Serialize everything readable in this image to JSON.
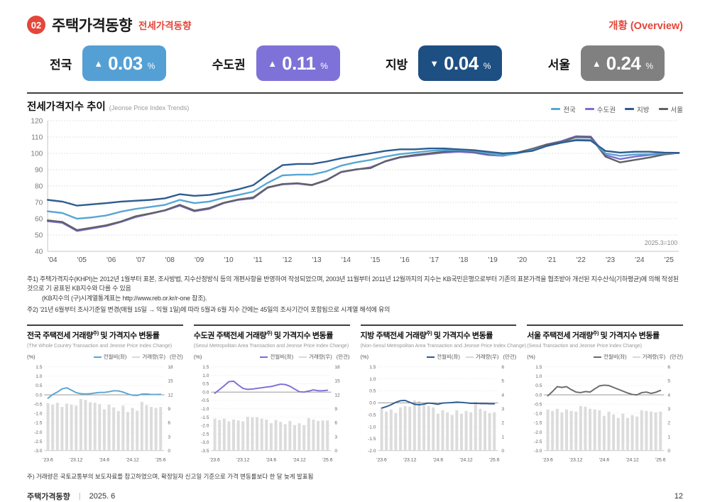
{
  "page": {
    "badge_number": "02",
    "title": "주택가격동향",
    "subtitle": "전세가격동향",
    "overview_label": "개황 (Overview)",
    "footnote1": "주1) 주택가격지수(KHPI)는 2012년 1월부터 표본, 조사방법, 지수산정방식 등의 개편사항을 반영하여 작성되었으며, 2003년 11월부터 2011년 12월까지의 지수는 KB국민은행으로부터 기존의 표본가격을 협조받아 개선된 지수산식(기하평균)에 의해 작성된 것으로 기 공표된 KB지수와 다를 수 있음",
    "footnote1b": "(KB지수의 (구)시계열통계표는 http://www.reb.or.kr/r-one 참조).",
    "footnote2": "주2) '21년 6월부터 조사기준일 변경(매월 15일 → 익월 1일)에 따라 5월과 6월 지수 간에는 45일의 조사기간이 포함됨으로 시계열 해석에 유의",
    "bottom_note": "주) 거래량은 국토교통부의 보도자료를 참고하였으며, 확정일자 신고일 기준으로 가격 변동률보다 한 달 늦게 발표됨",
    "footer_left": "주택가격동향",
    "footer_divider": "|",
    "footer_date": "2025. 6",
    "page_number": "12"
  },
  "summary_badges": [
    {
      "region": "전국",
      "direction": "▲",
      "value": "0.03",
      "unit": "%",
      "color": "#54a0d4"
    },
    {
      "region": "수도권",
      "direction": "▲",
      "value": "0.11",
      "unit": "%",
      "color": "#7e72d8"
    },
    {
      "region": "지방",
      "direction": "▼",
      "value": "0.04",
      "unit": "%",
      "color": "#1e4f82"
    },
    {
      "region": "서울",
      "direction": "▲",
      "value": "0.24",
      "unit": "%",
      "color": "#808080"
    }
  ],
  "index_chart": {
    "title": "전세가격지수 추이",
    "subtitle": "(Jeonse Price Index Trends)",
    "legend": [
      {
        "label": "전국",
        "color": "#58a6d4"
      },
      {
        "label": "수도권",
        "color": "#7b6fd5"
      },
      {
        "label": "지방",
        "color": "#2d5c8f"
      },
      {
        "label": "서울",
        "color": "#606066"
      }
    ]
  },
  "panels": [
    {
      "title_main": "전국 주택전세 거래량",
      "title_sup": "주)",
      "title_tail": " 및 가격지수 변동률",
      "subtitle": "(The Whole Country Transaction and Jeonse Price Index Change)",
      "unit_left": "(%)",
      "unit_right": "(만건)",
      "legend_line": "전월비(좌)",
      "legend_bar": "거래량(우)",
      "line_color": "#58a6d4",
      "bar_color": "#d9d9d9"
    },
    {
      "title_main": "수도권 주택전세 거래량",
      "title_sup": "주)",
      "title_tail": " 및 가격지수 변동률",
      "subtitle": "(Seoul Metropolitan Area Transaction and Jeonse Price Index Change)",
      "unit_left": "(%)",
      "unit_right": "(만건)",
      "legend_line": "전월비(좌)",
      "legend_bar": "거래량(우)",
      "line_color": "#7b6fd5",
      "bar_color": "#d9d9d9"
    },
    {
      "title_main": "지방 주택전세 거래량",
      "title_sup": "주)",
      "title_tail": " 및 가격지수 변동률",
      "subtitle": "(Non-Seoul Metropolitan Area Transaction and Jeonse Price Index Change)",
      "unit_left": "(%)",
      "unit_right": "(만건)",
      "legend_line": "전월비(좌)",
      "legend_bar": "거래량(우)",
      "line_color": "#2d5c8f",
      "bar_color": "#d9d9d9"
    },
    {
      "title_main": "서울 주택전세 거래량",
      "title_sup": "주)",
      "title_tail": " 및 가격지수 변동률",
      "subtitle": "(Seoul Transaction and Jeonse Price Index Change)",
      "unit_left": "(%)",
      "unit_right": "(만건)",
      "legend_line": "전월비(좌)",
      "legend_bar": "거래량(우)",
      "line_color": "#6b6b6e",
      "bar_color": "#d9d9d9"
    }
  ],
  "chart_data": [
    {
      "type": "line",
      "title": "전세가격지수 추이 (Jeonse Price Index Trends)",
      "note": "2025.3=100",
      "ylim": [
        40,
        120
      ],
      "yticks": [
        40,
        50,
        60,
        70,
        80,
        90,
        100,
        110,
        120
      ],
      "grid": "dotted-horizontal",
      "legend_position": "top-right",
      "x": [
        2004.0,
        2004.5,
        2005.0,
        2005.5,
        2006.0,
        2006.5,
        2007.0,
        2007.5,
        2008.0,
        2008.5,
        2009.0,
        2009.5,
        2010.0,
        2010.5,
        2011.0,
        2011.5,
        2012.0,
        2012.5,
        2013.0,
        2013.5,
        2014.0,
        2014.5,
        2015.0,
        2015.5,
        2016.0,
        2016.5,
        2017.0,
        2017.5,
        2018.0,
        2018.5,
        2019.0,
        2019.5,
        2020.0,
        2020.5,
        2021.0,
        2021.5,
        2022.0,
        2022.5,
        2023.0,
        2023.5,
        2024.0,
        2024.5,
        2025.0,
        2025.5
      ],
      "xticks": [
        {
          "year": 2004,
          "label": "'04"
        },
        {
          "year": 2005,
          "label": "'05"
        },
        {
          "year": 2006,
          "label": "'06"
        },
        {
          "year": 2007,
          "label": "'07"
        },
        {
          "year": 2008,
          "label": "'08"
        },
        {
          "year": 2009,
          "label": "'09"
        },
        {
          "year": 2010,
          "label": "'10"
        },
        {
          "year": 2011,
          "label": "'11"
        },
        {
          "year": 2012,
          "label": "'12"
        },
        {
          "year": 2013,
          "label": "'13"
        },
        {
          "year": 2014,
          "label": "'14"
        },
        {
          "year": 2015,
          "label": "'15"
        },
        {
          "year": 2016,
          "label": "'16"
        },
        {
          "year": 2017,
          "label": "'17"
        },
        {
          "year": 2018,
          "label": "'18"
        },
        {
          "year": 2019,
          "label": "'19"
        },
        {
          "year": 2020,
          "label": "'20"
        },
        {
          "year": 2021,
          "label": "'21"
        },
        {
          "year": 2022,
          "label": "'22"
        },
        {
          "year": 2023,
          "label": "'23"
        },
        {
          "year": 2024,
          "label": "'24"
        },
        {
          "year": 2025,
          "label": "'25"
        }
      ],
      "series": [
        {
          "name": "수도권",
          "color": "#7b6fd5",
          "values": [
            58.5,
            57.5,
            52.5,
            54.0,
            55.5,
            58.0,
            61.0,
            63.0,
            65.0,
            68.0,
            64.5,
            66.0,
            69.5,
            71.5,
            72.5,
            79.0,
            81.0,
            81.5,
            80.5,
            83.5,
            88.5,
            90.0,
            91.5,
            95.0,
            97.5,
            98.5,
            99.5,
            100.5,
            101.0,
            100.5,
            99.0,
            98.5,
            100.0,
            102.5,
            105.5,
            107.5,
            110.5,
            110.3,
            99.0,
            96.5,
            98.0,
            99.0,
            100.0,
            100.3
          ]
        },
        {
          "name": "서울",
          "color": "#606066",
          "values": [
            59.0,
            58.0,
            53.0,
            54.5,
            56.0,
            58.3,
            61.5,
            63.2,
            65.2,
            68.5,
            65.0,
            66.5,
            69.8,
            71.8,
            73.0,
            79.2,
            81.2,
            81.7,
            80.7,
            83.7,
            88.7,
            90.2,
            91.0,
            95.2,
            97.7,
            99.0,
            100.0,
            101.0,
            101.5,
            101.0,
            99.5,
            99.0,
            100.5,
            102.8,
            105.5,
            107.0,
            110.0,
            109.8,
            98.0,
            94.5,
            96.0,
            97.5,
            99.3,
            100.3
          ]
        },
        {
          "name": "전국",
          "color": "#58a6d4",
          "values": [
            64.5,
            63.5,
            60.0,
            60.8,
            62.0,
            64.3,
            66.0,
            67.2,
            68.5,
            71.5,
            69.5,
            70.5,
            72.8,
            74.5,
            76.5,
            82.0,
            86.5,
            87.0,
            87.0,
            89.0,
            92.5,
            94.5,
            96.0,
            98.0,
            99.5,
            100.5,
            101.5,
            102.0,
            102.0,
            101.5,
            100.0,
            98.8,
            100.0,
            102.0,
            104.5,
            106.5,
            108.5,
            108.3,
            100.0,
            98.5,
            99.3,
            99.5,
            100.0,
            100.2
          ]
        },
        {
          "name": "지방",
          "color": "#2d5c8f",
          "values": [
            71.5,
            70.5,
            68.0,
            68.8,
            69.5,
            70.5,
            71.0,
            71.5,
            72.5,
            75.0,
            74.0,
            74.5,
            76.0,
            78.0,
            80.5,
            87.0,
            92.8,
            93.5,
            93.5,
            95.0,
            97.0,
            98.5,
            100.0,
            101.5,
            102.5,
            102.5,
            103.0,
            103.0,
            102.5,
            102.0,
            101.0,
            100.0,
            100.5,
            101.5,
            104.5,
            106.5,
            108.0,
            107.8,
            101.5,
            100.5,
            101.0,
            101.0,
            100.5,
            100.3
          ]
        }
      ]
    },
    {
      "type": "bar+line",
      "title": "전국 주택전세 거래량 및 가격지수 변동률",
      "categories": [
        "'23.6",
        "'23.7",
        "'23.8",
        "'23.9",
        "'23.10",
        "'23.11",
        "'23.12",
        "'24.1",
        "'24.2",
        "'24.3",
        "'24.4",
        "'24.5",
        "'24.6",
        "'24.7",
        "'24.8",
        "'24.9",
        "'24.10",
        "'24.11",
        "'24.12",
        "'25.1",
        "'25.2",
        "'25.3",
        "'25.4",
        "'25.5",
        "'25.6"
      ],
      "xticks": [
        {
          "index": 0,
          "label": "'23.6"
        },
        {
          "index": 6,
          "label": "'23.12"
        },
        {
          "index": 12,
          "label": "'24.6"
        },
        {
          "index": 18,
          "label": "'24.12"
        },
        {
          "index": 24,
          "label": "'25.6"
        }
      ],
      "left_axis": {
        "label": "(%)",
        "min": -3.0,
        "max": 1.5,
        "step": 0.5
      },
      "right_axis": {
        "label": "(만건)",
        "min": 0,
        "max": 18,
        "step": 3
      },
      "line": {
        "name": "전월비(좌)",
        "color": "#58a6d4",
        "values": [
          -0.18,
          0.02,
          0.15,
          0.32,
          0.38,
          0.25,
          0.12,
          0.06,
          0.05,
          0.06,
          0.1,
          0.13,
          0.13,
          0.17,
          0.22,
          0.21,
          0.15,
          0.05,
          -0.02,
          -0.03,
          0.04,
          0.05,
          0.02,
          0.02,
          0.03
        ]
      },
      "bars": {
        "name": "거래량(우)",
        "color": "#dcdcdc",
        "values": [
          10.2,
          9.9,
          10.3,
          9.4,
          10.1,
          9.9,
          9.7,
          11.1,
          10.9,
          10.4,
          10.3,
          10.0,
          8.9,
          9.9,
          9.3,
          8.5,
          9.7,
          8.3,
          9.2,
          8.6,
          10.5,
          9.8,
          9.4,
          9.2,
          9.4
        ]
      }
    },
    {
      "type": "bar+line",
      "title": "수도권 주택전세 거래량 및 가격지수 변동률",
      "categories": [
        "'23.6",
        "'23.7",
        "'23.8",
        "'23.9",
        "'23.10",
        "'23.11",
        "'23.12",
        "'24.1",
        "'24.2",
        "'24.3",
        "'24.4",
        "'24.5",
        "'24.6",
        "'24.7",
        "'24.8",
        "'24.9",
        "'24.10",
        "'24.11",
        "'24.12",
        "'25.1",
        "'25.2",
        "'25.3",
        "'25.4",
        "'25.5",
        "'25.6"
      ],
      "xticks": [
        {
          "index": 0,
          "label": "'23.6"
        },
        {
          "index": 6,
          "label": "'23.12"
        },
        {
          "index": 12,
          "label": "'24.6"
        },
        {
          "index": 18,
          "label": "'24.12"
        },
        {
          "index": 24,
          "label": "'25.6"
        }
      ],
      "left_axis": {
        "label": "(%)",
        "min": -3.5,
        "max": 1.5,
        "step": 0.5
      },
      "right_axis": {
        "label": "(만건)",
        "min": 0,
        "max": 18,
        "step": 3
      },
      "line": {
        "name": "전월비(좌)",
        "color": "#7b6fd5",
        "values": [
          -0.07,
          0.15,
          0.38,
          0.62,
          0.65,
          0.42,
          0.22,
          0.16,
          0.18,
          0.22,
          0.26,
          0.3,
          0.33,
          0.4,
          0.47,
          0.45,
          0.35,
          0.18,
          0.02,
          0.0,
          0.06,
          0.13,
          0.08,
          0.08,
          0.11
        ]
      },
      "bars": {
        "name": "거래량(우)",
        "color": "#dcdcdc",
        "values": [
          6.9,
          6.6,
          6.9,
          6.3,
          6.7,
          6.5,
          6.3,
          7.3,
          7.2,
          7.2,
          6.9,
          6.7,
          5.9,
          6.6,
          6.2,
          5.7,
          6.4,
          5.5,
          5.9,
          5.5,
          7.0,
          6.7,
          6.4,
          6.5,
          6.5
        ]
      }
    },
    {
      "type": "bar+line",
      "title": "지방 주택전세 거래량 및 가격지수 변동률",
      "categories": [
        "'23.6",
        "'23.7",
        "'23.8",
        "'23.9",
        "'23.10",
        "'23.11",
        "'23.12",
        "'24.1",
        "'24.2",
        "'24.3",
        "'24.4",
        "'24.5",
        "'24.6",
        "'24.7",
        "'24.8",
        "'24.9",
        "'24.10",
        "'24.11",
        "'24.12",
        "'25.1",
        "'25.2",
        "'25.3",
        "'25.4",
        "'25.5",
        "'25.6"
      ],
      "xticks": [
        {
          "index": 0,
          "label": "'23.6"
        },
        {
          "index": 6,
          "label": "'23.12"
        },
        {
          "index": 12,
          "label": "'24.6"
        },
        {
          "index": 18,
          "label": "'24.12"
        },
        {
          "index": 24,
          "label": "'25.6"
        }
      ],
      "left_axis": {
        "label": "(%)",
        "min": -2.0,
        "max": 1.5,
        "step": 0.5
      },
      "right_axis": {
        "label": "(만건)",
        "min": 0,
        "max": 6,
        "step": 1
      },
      "line": {
        "name": "전월비(좌)",
        "color": "#2d5c8f",
        "values": [
          -0.22,
          -0.16,
          -0.08,
          0.02,
          0.09,
          0.1,
          0.02,
          -0.06,
          -0.08,
          -0.05,
          -0.01,
          -0.03,
          -0.06,
          -0.01,
          0.0,
          0.01,
          0.03,
          0.02,
          0.0,
          -0.02,
          -0.02,
          -0.03,
          -0.03,
          -0.04,
          -0.04
        ]
      },
      "bars": {
        "name": "거래량(우)",
        "color": "#dcdcdc",
        "values": [
          3.0,
          2.8,
          2.95,
          2.7,
          3.1,
          3.2,
          3.15,
          3.6,
          3.55,
          3.3,
          3.2,
          3.1,
          2.65,
          2.9,
          2.75,
          2.55,
          2.9,
          2.65,
          2.85,
          2.75,
          3.5,
          3.0,
          2.85,
          2.7,
          2.75
        ]
      }
    },
    {
      "type": "bar+line",
      "title": "서울 주택전세 거래량 및 가격지수 변동률",
      "categories": [
        "'23.6",
        "'23.7",
        "'23.8",
        "'23.9",
        "'23.10",
        "'23.11",
        "'23.12",
        "'24.1",
        "'24.2",
        "'24.3",
        "'24.4",
        "'24.5",
        "'24.6",
        "'24.7",
        "'24.8",
        "'24.9",
        "'24.10",
        "'24.11",
        "'24.12",
        "'25.1",
        "'25.2",
        "'25.3",
        "'25.4",
        "'25.5",
        "'25.6"
      ],
      "xticks": [
        {
          "index": 0,
          "label": "'23.6"
        },
        {
          "index": 6,
          "label": "'23.12"
        },
        {
          "index": 12,
          "label": "'24.6"
        },
        {
          "index": 18,
          "label": "'24.12"
        },
        {
          "index": 24,
          "label": "'25.6"
        }
      ],
      "left_axis": {
        "label": "(%)",
        "min": -3.0,
        "max": 1.5,
        "step": 0.5
      },
      "right_axis": {
        "label": "(만건)",
        "min": 0,
        "max": 6,
        "step": 1
      },
      "line": {
        "name": "전월비(좌)",
        "color": "#6b6b6e",
        "values": [
          -0.05,
          0.18,
          0.44,
          0.4,
          0.44,
          0.28,
          0.15,
          0.12,
          0.18,
          0.15,
          0.32,
          0.48,
          0.52,
          0.5,
          0.4,
          0.3,
          0.2,
          0.1,
          0.02,
          0.0,
          0.12,
          0.15,
          0.08,
          0.14,
          0.24
        ]
      },
      "bars": {
        "name": "거래량(우)",
        "color": "#dcdcdc",
        "values": [
          2.95,
          2.85,
          3.0,
          2.75,
          2.95,
          2.85,
          2.8,
          3.2,
          3.15,
          3.0,
          2.95,
          2.9,
          2.5,
          2.8,
          2.6,
          2.35,
          2.65,
          2.35,
          2.55,
          2.45,
          2.9,
          2.85,
          2.8,
          2.75,
          2.8
        ]
      }
    }
  ]
}
